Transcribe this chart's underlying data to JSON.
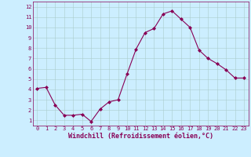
{
  "x": [
    0,
    1,
    2,
    3,
    4,
    5,
    6,
    7,
    8,
    9,
    10,
    11,
    12,
    13,
    14,
    15,
    16,
    17,
    18,
    19,
    20,
    21,
    22,
    23
  ],
  "y": [
    4.1,
    4.2,
    2.5,
    1.5,
    1.5,
    1.6,
    0.9,
    2.1,
    2.8,
    3.0,
    5.5,
    7.9,
    9.5,
    9.9,
    11.3,
    11.6,
    10.8,
    10.0,
    7.8,
    7.0,
    6.5,
    5.9,
    5.1,
    5.1
  ],
  "line_color": "#880055",
  "marker": "D",
  "marker_size": 2.0,
  "bg_color": "#cceeff",
  "grid_color": "#aacccc",
  "xlabel": "Windchill (Refroidissement éolien,°C)",
  "ylim": [
    0.5,
    12.5
  ],
  "xlim": [
    -0.5,
    23.5
  ],
  "yticks": [
    1,
    2,
    3,
    4,
    5,
    6,
    7,
    8,
    9,
    10,
    11,
    12
  ],
  "xticks": [
    0,
    1,
    2,
    3,
    4,
    5,
    6,
    7,
    8,
    9,
    10,
    11,
    12,
    13,
    14,
    15,
    16,
    17,
    18,
    19,
    20,
    21,
    22,
    23
  ],
  "tick_color": "#880055",
  "label_color": "#880055",
  "spine_color": "#880055",
  "tick_fontsize": 5.0,
  "xlabel_fontsize": 6.0
}
